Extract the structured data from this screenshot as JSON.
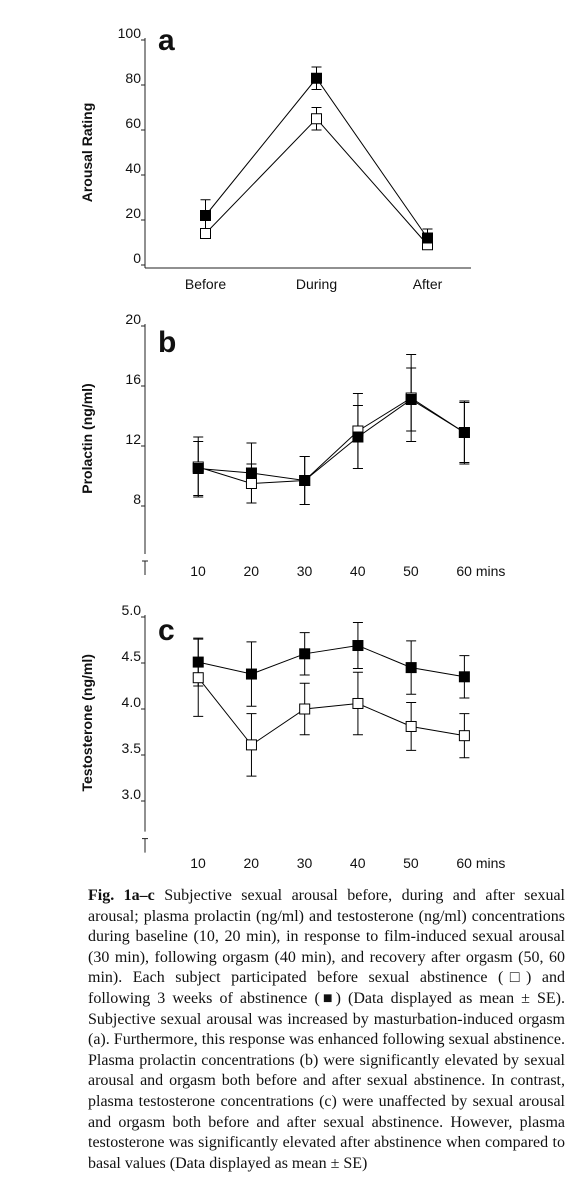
{
  "chart_data": [
    {
      "type": "line",
      "panel_label": "a",
      "ylabel": "Arousal Rating",
      "categories": [
        "Before",
        "During",
        "After"
      ],
      "ylim": [
        0,
        100
      ],
      "yticks": [
        0,
        20,
        40,
        60,
        80,
        100
      ],
      "series": [
        {
          "marker": "square-open",
          "color": "#000000",
          "values": [
            14,
            65,
            9
          ],
          "errors": [
            2,
            5,
            2
          ]
        },
        {
          "marker": "square-filled",
          "color": "#000000",
          "values": [
            22,
            83,
            12
          ],
          "errors": [
            7,
            5,
            4
          ]
        }
      ]
    },
    {
      "type": "line",
      "panel_label": "b",
      "ylabel": "Prolactin (ng/ml)",
      "x": [
        10,
        20,
        30,
        40,
        50,
        60
      ],
      "xlim": [
        0,
        65
      ],
      "xticks": [
        10,
        20,
        30,
        40,
        50,
        {
          "value": 60,
          "label": "60 mins"
        }
      ],
      "ylim": [
        5,
        20
      ],
      "yticks": [
        8,
        12,
        16,
        20
      ],
      "series": [
        {
          "marker": "square-open",
          "color": "#000000",
          "values": [
            10.6,
            9.5,
            9.7,
            13.0,
            15.2,
            12.9
          ],
          "errors": [
            2.0,
            1.3,
            1.6,
            2.5,
            2.9,
            2.0
          ]
        },
        {
          "marker": "square-filled",
          "color": "#000000",
          "values": [
            10.5,
            10.2,
            9.7,
            12.6,
            15.1,
            12.9
          ],
          "errors": [
            1.8,
            2.0,
            1.6,
            2.1,
            2.1,
            2.1
          ]
        }
      ]
    },
    {
      "type": "line",
      "panel_label": "c",
      "ylabel": "Testosterone (ng/ml)",
      "x": [
        10,
        20,
        30,
        40,
        50,
        60
      ],
      "xlim": [
        0,
        65
      ],
      "xticks": [
        10,
        20,
        30,
        40,
        50,
        {
          "value": 60,
          "label": "60 mins"
        }
      ],
      "ylim": [
        2.7,
        5.0
      ],
      "yticks": [
        {
          "value": 3,
          "label": "3.0"
        },
        {
          "value": 3.5,
          "label": "3.5"
        },
        {
          "value": 4,
          "label": "4.0"
        },
        {
          "value": 4.5,
          "label": "4.5"
        },
        {
          "value": 5,
          "label": "5.0"
        }
      ],
      "series": [
        {
          "marker": "square-open",
          "color": "#000000",
          "values": [
            4.34,
            3.61,
            4.0,
            4.06,
            3.81,
            3.71
          ],
          "errors": [
            0.42,
            0.34,
            0.28,
            0.34,
            0.26,
            0.24
          ]
        },
        {
          "marker": "square-filled",
          "color": "#000000",
          "values": [
            4.51,
            4.38,
            4.6,
            4.69,
            4.45,
            4.35
          ],
          "errors": [
            0.26,
            0.35,
            0.23,
            0.25,
            0.29,
            0.23
          ]
        }
      ]
    }
  ],
  "caption": {
    "label": "Fig. 1a–c",
    "text": "Subjective sexual arousal before, during and after sexual arousal; plasma prolactin (ng/ml) and testosterone (ng/ml) concentrations during baseline (10, 20 min), in response to film-induced sexual arousal (30 min), following orgasm (40 min), and recovery after orgasm (50, 60 min). Each subject participated before sexual abstinence (□) and following 3 weeks of abstinence (■) (Data displayed as mean ± SE). Subjective sexual arousal was increased by masturbation-induced orgasm (a). Furthermore, this response was enhanced following sexual abstinence. Plasma prolactin concentrations (b) were significantly elevated by sexual arousal and orgasm both before and after sexual abstinence. In contrast, plasma testosterone concentrations (c) were unaffected by sexual arousal and orgasm both before and after sexual abstinence. However, plasma testosterone was significantly elevated after abstinence when compared to basal values (Data displayed as mean ± SE)"
  }
}
